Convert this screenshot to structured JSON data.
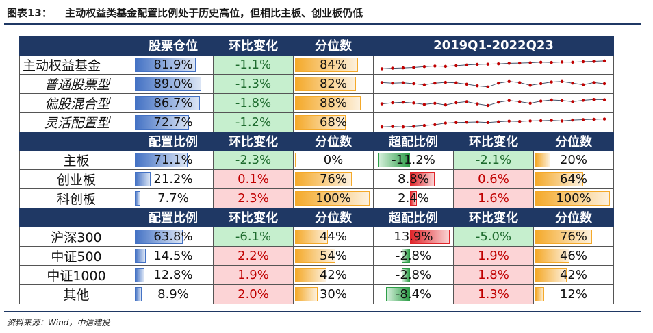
{
  "title": {
    "prefix": "图表13：",
    "text": "主动权益类基金配置比例处于历史高位，但相比主板、创业板仍低"
  },
  "source": "资料来源：Wind，中信建投",
  "section1": {
    "headers": [
      "股票仓位",
      "环比变化",
      "分位数",
      "2019Q1-2022Q23"
    ],
    "rows": [
      {
        "name": "主动权益基金",
        "position": "81.9%",
        "pos_val": 0.819,
        "change": "-1.1%",
        "pct": "84%",
        "pct_val": 0.84
      },
      {
        "name": "普通股票型",
        "position": "89.0%",
        "pos_val": 0.89,
        "change": "-1.3%",
        "pct": "82%",
        "pct_val": 0.82
      },
      {
        "name": "偏股混合型",
        "position": "86.7%",
        "pos_val": 0.867,
        "change": "-1.8%",
        "pct": "88%",
        "pct_val": 0.88
      },
      {
        "name": "灵活配置型",
        "position": "72.7%",
        "pos_val": 0.727,
        "change": "-1.2%",
        "pct": "68%",
        "pct_val": 0.68
      }
    ]
  },
  "section2": {
    "headers": [
      "配置比例",
      "环比变化",
      "分位数",
      "超配比例",
      "环比变化",
      "分位数"
    ],
    "rows": [
      {
        "name": "主板",
        "alloc": "71.1%",
        "alloc_val": 0.711,
        "change": "-2.3%",
        "change_pos": false,
        "pct": "0%",
        "pct_val": 0.0,
        "over": "-11.2%",
        "over_val": -11.2,
        "change2": "-2.1%",
        "change2_pos": false,
        "pct2": "20%",
        "pct2_val": 0.2
      },
      {
        "name": "创业板",
        "alloc": "21.2%",
        "alloc_val": 0.212,
        "change": "0.1%",
        "change_pos": true,
        "pct": "76%",
        "pct_val": 0.76,
        "over": "8.8%",
        "over_val": 8.8,
        "change2": "0.6%",
        "change2_pos": true,
        "pct2": "64%",
        "pct2_val": 0.64
      },
      {
        "name": "科创板",
        "alloc": "7.7%",
        "alloc_val": 0.077,
        "change": "2.3%",
        "change_pos": true,
        "pct": "100%",
        "pct_val": 1.0,
        "over": "2.4%",
        "over_val": 2.4,
        "change2": "1.6%",
        "change2_pos": true,
        "pct2": "100%",
        "pct2_val": 1.0
      }
    ]
  },
  "section3": {
    "headers": [
      "配置比例",
      "环比变化",
      "分位数",
      "超配比例",
      "环比变化",
      "分位数"
    ],
    "rows": [
      {
        "name": "沪深300",
        "alloc": "63.8%",
        "alloc_val": 0.638,
        "change": "-6.1%",
        "change_pos": false,
        "pct": "44%",
        "pct_val": 0.44,
        "over": "13.9%",
        "over_val": 13.9,
        "change2": "-5.0%",
        "change2_pos": false,
        "pct2": "76%",
        "pct2_val": 0.76
      },
      {
        "name": "中证500",
        "alloc": "14.5%",
        "alloc_val": 0.145,
        "change": "2.2%",
        "change_pos": true,
        "pct": "54%",
        "pct_val": 0.54,
        "over": "-2.8%",
        "over_val": -2.8,
        "change2": "1.9%",
        "change2_pos": true,
        "pct2": "46%",
        "pct2_val": 0.46
      },
      {
        "name": "中证1000",
        "alloc": "12.8%",
        "alloc_val": 0.128,
        "change": "1.9%",
        "change_pos": true,
        "pct": "42%",
        "pct_val": 0.42,
        "over": "-2.8%",
        "over_val": -2.8,
        "change2": "1.8%",
        "change2_pos": true,
        "pct2": "42%",
        "pct2_val": 0.42
      },
      {
        "name": "其他",
        "alloc": "8.9%",
        "alloc_val": 0.089,
        "change": "2.0%",
        "change_pos": true,
        "pct": "30%",
        "pct_val": 0.3,
        "over": "-8.4%",
        "over_val": -8.4,
        "change2": "1.3%",
        "change2_pos": true,
        "pct2": "12%",
        "pct2_val": 0.12
      }
    ]
  },
  "sparklines": [
    [
      0.1,
      0.15,
      0.18,
      0.22,
      0.3,
      0.35,
      0.32,
      0.38,
      0.45,
      0.5,
      0.52,
      0.55,
      0.6,
      0.62,
      0.65,
      0.7,
      0.68,
      0.72,
      0.7,
      0.75,
      0.78,
      0.82
    ],
    [
      0.6,
      0.55,
      0.58,
      0.5,
      0.4,
      0.55,
      0.62,
      0.58,
      0.45,
      0.3,
      0.2,
      0.55,
      0.7,
      0.6,
      0.35,
      0.5,
      0.65,
      0.7,
      0.55,
      0.4,
      0.6,
      0.5
    ],
    [
      0.4,
      0.5,
      0.55,
      0.48,
      0.35,
      0.45,
      0.3,
      0.5,
      0.6,
      0.4,
      0.25,
      0.55,
      0.7,
      0.6,
      0.45,
      0.65,
      0.75,
      0.7,
      0.6,
      0.72,
      0.8,
      0.78
    ],
    [
      0.05,
      0.08,
      0.05,
      0.1,
      0.18,
      0.25,
      0.4,
      0.45,
      0.48,
      0.5,
      0.45,
      0.52,
      0.58,
      0.55,
      0.6,
      0.62,
      0.65,
      0.6,
      0.68,
      0.72,
      0.75,
      0.78
    ]
  ],
  "colors": {
    "header": "#1f3864",
    "blue": "#4472c4",
    "orange": "#f4a92a",
    "green": "#c6efce",
    "red": "#fcd4d6"
  }
}
